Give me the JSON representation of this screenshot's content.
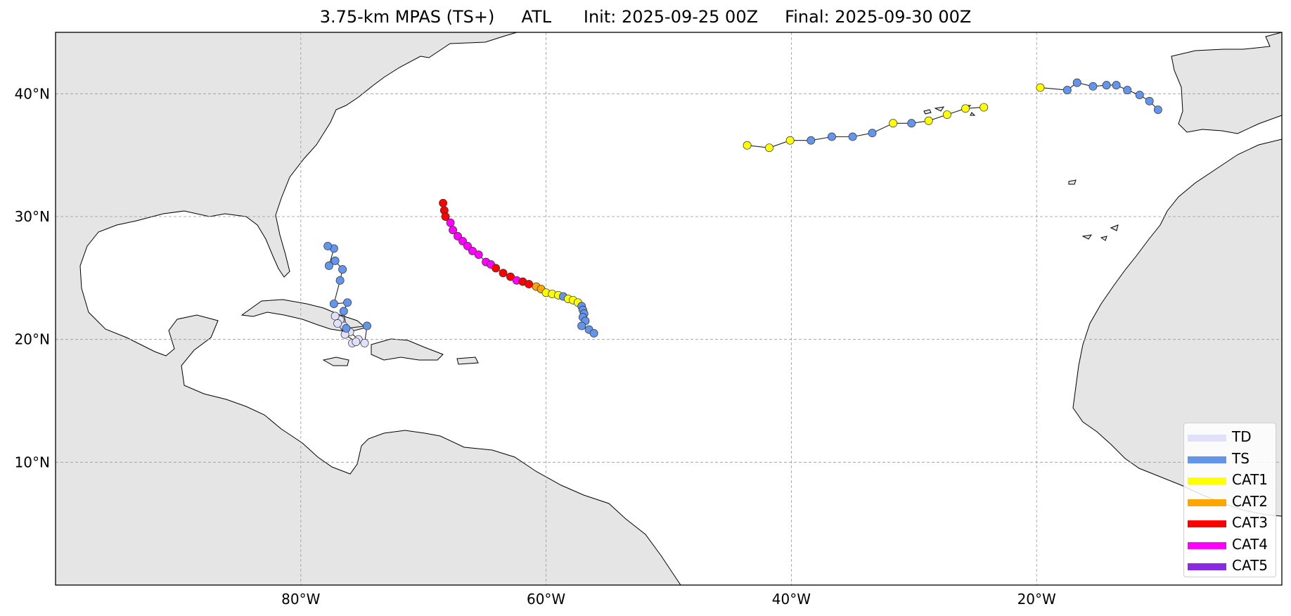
{
  "title": "3.75-km MPAS (TS+)     ATL      Init: 2025-09-25 00Z     Final: 2025-09-30 00Z",
  "axes": {
    "x_ticks": [
      "80°W",
      "60°W",
      "40°W",
      "20°W"
    ],
    "y_ticks": [
      "40°N",
      "30°N",
      "20°N",
      "10°N"
    ],
    "lon_range": [
      -100,
      0
    ],
    "lat_range": [
      0,
      45
    ],
    "grid": true
  },
  "colors": {
    "TD": "#e0e0fa",
    "TS": "#6495ed",
    "CAT1": "#ffff00",
    "CAT2": "#ffa500",
    "CAT3": "#ff0000",
    "CAT4": "#ff00ff",
    "CAT5": "#8a2be2",
    "land": "#e5e5e5"
  },
  "legend": {
    "position": "lower-right",
    "items": [
      {
        "label": "TD",
        "key": "TD"
      },
      {
        "label": "TS",
        "key": "TS"
      },
      {
        "label": "CAT1",
        "key": "CAT1"
      },
      {
        "label": "CAT2",
        "key": "CAT2"
      },
      {
        "label": "CAT3",
        "key": "CAT3"
      },
      {
        "label": "CAT4",
        "key": "CAT4"
      },
      {
        "label": "CAT5",
        "key": "CAT5"
      }
    ]
  },
  "tracks": [
    {
      "points": [
        {
          "lon": -75.8,
          "lat": 19.7,
          "cat": "TD"
        },
        {
          "lon": -75.3,
          "lat": 20.0,
          "cat": "TD"
        },
        {
          "lon": -76.0,
          "lat": 20.6,
          "cat": "TD"
        },
        {
          "lon": -76.5,
          "lat": 21.1,
          "cat": "TD"
        },
        {
          "lon": -76.8,
          "lat": 21.6,
          "cat": "TD"
        },
        {
          "lon": -77.2,
          "lat": 21.9,
          "cat": "TD"
        },
        {
          "lon": -77.0,
          "lat": 21.3,
          "cat": "TD"
        },
        {
          "lon": -76.4,
          "lat": 20.4,
          "cat": "TD"
        },
        {
          "lon": -75.5,
          "lat": 19.8,
          "cat": "TD"
        },
        {
          "lon": -74.8,
          "lat": 19.7,
          "cat": "TD"
        },
        {
          "lon": -74.6,
          "lat": 21.1,
          "cat": "TS"
        },
        {
          "lon": -76.3,
          "lat": 20.9,
          "cat": "TS"
        },
        {
          "lon": -76.5,
          "lat": 22.3,
          "cat": "TS"
        },
        {
          "lon": -76.2,
          "lat": 23.0,
          "cat": "TS"
        },
        {
          "lon": -77.3,
          "lat": 22.9,
          "cat": "TS"
        },
        {
          "lon": -76.8,
          "lat": 24.8,
          "cat": "TS"
        },
        {
          "lon": -76.6,
          "lat": 25.7,
          "cat": "TS"
        },
        {
          "lon": -77.2,
          "lat": 26.4,
          "cat": "TS"
        },
        {
          "lon": -77.7,
          "lat": 26.0,
          "cat": "TS"
        },
        {
          "lon": -77.3,
          "lat": 27.4,
          "cat": "TS"
        },
        {
          "lon": -77.8,
          "lat": 27.6,
          "cat": "TS"
        }
      ]
    },
    {
      "points": [
        {
          "lon": -68.4,
          "lat": 31.1,
          "cat": "CAT3"
        },
        {
          "lon": -68.3,
          "lat": 30.5,
          "cat": "CAT3"
        },
        {
          "lon": -68.2,
          "lat": 30.0,
          "cat": "CAT3"
        },
        {
          "lon": -67.8,
          "lat": 29.5,
          "cat": "CAT4"
        },
        {
          "lon": -67.6,
          "lat": 28.9,
          "cat": "CAT4"
        },
        {
          "lon": -67.2,
          "lat": 28.4,
          "cat": "CAT4"
        },
        {
          "lon": -66.8,
          "lat": 28.0,
          "cat": "CAT4"
        },
        {
          "lon": -66.4,
          "lat": 27.6,
          "cat": "CAT4"
        },
        {
          "lon": -66.0,
          "lat": 27.2,
          "cat": "CAT4"
        },
        {
          "lon": -65.5,
          "lat": 26.9,
          "cat": "CAT4"
        },
        {
          "lon": -64.9,
          "lat": 26.3,
          "cat": "CAT4"
        },
        {
          "lon": -64.5,
          "lat": 26.1,
          "cat": "CAT4"
        },
        {
          "lon": -64.1,
          "lat": 25.8,
          "cat": "CAT3"
        },
        {
          "lon": -63.5,
          "lat": 25.4,
          "cat": "CAT3"
        },
        {
          "lon": -62.9,
          "lat": 25.1,
          "cat": "CAT3"
        },
        {
          "lon": -62.4,
          "lat": 24.8,
          "cat": "CAT4"
        },
        {
          "lon": -61.9,
          "lat": 24.7,
          "cat": "CAT3"
        },
        {
          "lon": -61.4,
          "lat": 24.5,
          "cat": "CAT3"
        },
        {
          "lon": -60.8,
          "lat": 24.3,
          "cat": "CAT2"
        },
        {
          "lon": -60.4,
          "lat": 24.1,
          "cat": "CAT2"
        },
        {
          "lon": -60.0,
          "lat": 23.8,
          "cat": "CAT1"
        },
        {
          "lon": -59.5,
          "lat": 23.7,
          "cat": "CAT1"
        },
        {
          "lon": -59.0,
          "lat": 23.6,
          "cat": "CAT1"
        },
        {
          "lon": -58.6,
          "lat": 23.5,
          "cat": "TS"
        },
        {
          "lon": -58.2,
          "lat": 23.3,
          "cat": "CAT1"
        },
        {
          "lon": -57.8,
          "lat": 23.2,
          "cat": "CAT1"
        },
        {
          "lon": -57.4,
          "lat": 23.0,
          "cat": "CAT1"
        },
        {
          "lon": -57.1,
          "lat": 22.7,
          "cat": "TS"
        },
        {
          "lon": -57.0,
          "lat": 22.4,
          "cat": "TS"
        },
        {
          "lon": -56.9,
          "lat": 22.1,
          "cat": "TS"
        },
        {
          "lon": -57.0,
          "lat": 21.8,
          "cat": "TS"
        },
        {
          "lon": -56.8,
          "lat": 21.5,
          "cat": "TS"
        },
        {
          "lon": -57.1,
          "lat": 21.1,
          "cat": "TS"
        },
        {
          "lon": -56.5,
          "lat": 20.8,
          "cat": "TS"
        },
        {
          "lon": -56.1,
          "lat": 20.5,
          "cat": "TS"
        }
      ]
    },
    {
      "points": [
        {
          "lon": -43.6,
          "lat": 35.8,
          "cat": "CAT1"
        },
        {
          "lon": -41.8,
          "lat": 35.6,
          "cat": "CAT1"
        },
        {
          "lon": -40.1,
          "lat": 36.2,
          "cat": "CAT1"
        },
        {
          "lon": -38.4,
          "lat": 36.2,
          "cat": "TS"
        },
        {
          "lon": -36.7,
          "lat": 36.5,
          "cat": "TS"
        },
        {
          "lon": -35.0,
          "lat": 36.5,
          "cat": "TS"
        },
        {
          "lon": -33.4,
          "lat": 36.8,
          "cat": "TS"
        },
        {
          "lon": -31.7,
          "lat": 37.6,
          "cat": "CAT1"
        },
        {
          "lon": -30.2,
          "lat": 37.6,
          "cat": "TS"
        },
        {
          "lon": -28.8,
          "lat": 37.8,
          "cat": "CAT1"
        },
        {
          "lon": -27.3,
          "lat": 38.3,
          "cat": "CAT1"
        },
        {
          "lon": -25.8,
          "lat": 38.8,
          "cat": "CAT1"
        },
        {
          "lon": -24.3,
          "lat": 38.9,
          "cat": "CAT1"
        }
      ]
    },
    {
      "points": [
        {
          "lon": -19.7,
          "lat": 40.5,
          "cat": "CAT1"
        },
        {
          "lon": -17.5,
          "lat": 40.3,
          "cat": "TS"
        },
        {
          "lon": -16.7,
          "lat": 40.9,
          "cat": "TS"
        },
        {
          "lon": -15.4,
          "lat": 40.6,
          "cat": "TS"
        },
        {
          "lon": -14.3,
          "lat": 40.7,
          "cat": "TS"
        },
        {
          "lon": -13.5,
          "lat": 40.7,
          "cat": "TS"
        },
        {
          "lon": -12.6,
          "lat": 40.3,
          "cat": "TS"
        },
        {
          "lon": -11.6,
          "lat": 39.9,
          "cat": "TS"
        },
        {
          "lon": -10.8,
          "lat": 39.4,
          "cat": "TS"
        },
        {
          "lon": -10.1,
          "lat": 38.7,
          "cat": "TS"
        }
      ]
    }
  ]
}
